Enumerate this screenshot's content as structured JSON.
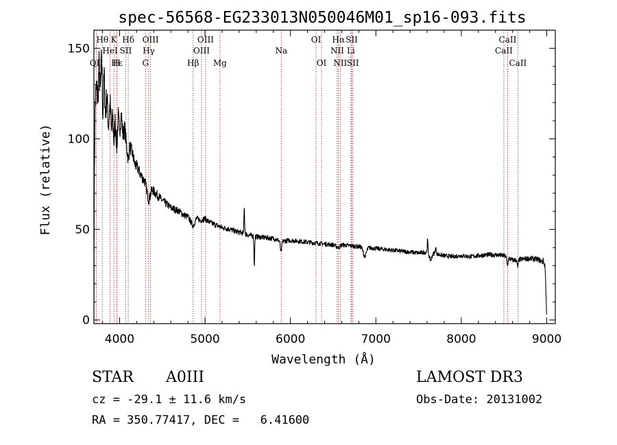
{
  "chart_data": {
    "type": "line",
    "title": "spec-56568-EG233013N050046M01_sp16-093.fits",
    "xlabel": "Wavelength (Å)",
    "ylabel": "Flux (relative)",
    "xlim": [
      3700,
      9100
    ],
    "ylim": [
      -2,
      160
    ],
    "xticks": [
      "4000",
      "5000",
      "6000",
      "7000",
      "8000",
      "9000"
    ],
    "xtick_values": [
      4000,
      5000,
      6000,
      7000,
      8000,
      9000
    ],
    "yticks": [
      "0",
      "50",
      "100",
      "150"
    ],
    "ytick_values": [
      0,
      50,
      100,
      150
    ],
    "grid": false,
    "line_color": "#000000",
    "marker_color": "#a83232",
    "lines": [
      {
        "label": "OII",
        "x": 3727,
        "row": 2
      },
      {
        "label": "Hθ",
        "x": 3798,
        "row": 0
      },
      {
        "label": "HeI",
        "x": 3889,
        "row": 1
      },
      {
        "label": "K",
        "x": 3934,
        "row": 0
      },
      {
        "label": "SII",
        "x": 4072,
        "row": 1
      },
      {
        "label": "Hε",
        "x": 3970,
        "row": 2
      },
      {
        "label": "H",
        "x": 3968,
        "row": 2
      },
      {
        "label": "Hδ",
        "x": 4102,
        "row": 0
      },
      {
        "label": "OIII",
        "x": 4363,
        "row": 0
      },
      {
        "label": "Hγ",
        "x": 4341,
        "row": 1
      },
      {
        "label": "G",
        "x": 4304,
        "row": 2
      },
      {
        "label": "Hβ",
        "x": 4861,
        "row": 2
      },
      {
        "label": "OIII",
        "x": 5007,
        "row": 0
      },
      {
        "label": "OIII",
        "x": 4959,
        "row": 1
      },
      {
        "label": "Mg",
        "x": 5175,
        "row": 2
      },
      {
        "label": "Na",
        "x": 5893,
        "row": 1
      },
      {
        "label": "OI",
        "x": 6300,
        "row": 0
      },
      {
        "label": "OI",
        "x": 6364,
        "row": 2
      },
      {
        "label": "Hα",
        "x": 6563,
        "row": 0
      },
      {
        "label": "SII",
        "x": 6717,
        "row": 0
      },
      {
        "label": "NII",
        "x": 6548,
        "row": 1
      },
      {
        "label": "Li",
        "x": 6708,
        "row": 1
      },
      {
        "label": "NII",
        "x": 6583,
        "row": 2
      },
      {
        "label": "SII",
        "x": 6731,
        "row": 2
      },
      {
        "label": "CaII",
        "x": 8542,
        "row": 0
      },
      {
        "label": "CaII",
        "x": 8498,
        "row": 1
      },
      {
        "label": "CaII",
        "x": 8662,
        "row": 2
      }
    ],
    "spectrum": {
      "anchors": [
        [
          3700,
          5
        ],
        [
          3705,
          85
        ],
        [
          3715,
          120
        ],
        [
          3730,
          128
        ],
        [
          3745,
          122
        ],
        [
          3760,
          140
        ],
        [
          3775,
          125
        ],
        [
          3790,
          145
        ],
        [
          3805,
          115
        ],
        [
          3820,
          135
        ],
        [
          3835,
          112
        ],
        [
          3850,
          125
        ],
        [
          3870,
          108
        ],
        [
          3890,
          120
        ],
        [
          3905,
          103
        ],
        [
          3920,
          112
        ],
        [
          3935,
          98
        ],
        [
          3950,
          110
        ],
        [
          3968,
          95
        ],
        [
          3985,
          112
        ],
        [
          4000,
          104
        ],
        [
          4020,
          114
        ],
        [
          4040,
          102
        ],
        [
          4060,
          106
        ],
        [
          4080,
          97
        ],
        [
          4102,
          88
        ],
        [
          4120,
          96
        ],
        [
          4150,
          92
        ],
        [
          4180,
          86
        ],
        [
          4210,
          84
        ],
        [
          4250,
          80
        ],
        [
          4300,
          76
        ],
        [
          4341,
          66
        ],
        [
          4380,
          72
        ],
        [
          4420,
          70
        ],
        [
          4460,
          68
        ],
        [
          4500,
          66
        ],
        [
          4550,
          64
        ],
        [
          4600,
          62
        ],
        [
          4650,
          61
        ],
        [
          4700,
          60
        ],
        [
          4750,
          58
        ],
        [
          4800,
          57
        ],
        [
          4861,
          52
        ],
        [
          4900,
          56
        ],
        [
          4950,
          55
        ],
        [
          5000,
          56
        ],
        [
          5050,
          54
        ],
        [
          5100,
          53
        ],
        [
          5150,
          52
        ],
        [
          5200,
          51
        ],
        [
          5250,
          50.5
        ],
        [
          5300,
          50
        ],
        [
          5350,
          49
        ],
        [
          5400,
          48.5
        ],
        [
          5450,
          48
        ],
        [
          5500,
          47
        ],
        [
          5600,
          46
        ],
        [
          5700,
          45.5
        ],
        [
          5800,
          45
        ],
        [
          5893,
          43.5
        ],
        [
          6000,
          44
        ],
        [
          6100,
          43.5
        ],
        [
          6200,
          43
        ],
        [
          6300,
          42.5
        ],
        [
          6400,
          42
        ],
        [
          6500,
          41.5
        ],
        [
          6563,
          40
        ],
        [
          6600,
          41.5
        ],
        [
          6700,
          41
        ],
        [
          6800,
          40.5
        ],
        [
          6900,
          40
        ],
        [
          7000,
          39.5
        ],
        [
          7100,
          39
        ],
        [
          7200,
          38.5
        ],
        [
          7300,
          38
        ],
        [
          7400,
          37.5
        ],
        [
          7500,
          37
        ],
        [
          7600,
          37.5
        ],
        [
          7700,
          36.5
        ],
        [
          7800,
          35.5
        ],
        [
          7900,
          35
        ],
        [
          8000,
          35.5
        ],
        [
          8100,
          35
        ],
        [
          8200,
          35.5
        ],
        [
          8300,
          36
        ],
        [
          8400,
          36
        ],
        [
          8500,
          35.5
        ],
        [
          8600,
          33
        ],
        [
          8700,
          33.5
        ],
        [
          8800,
          34
        ],
        [
          8900,
          33.5
        ],
        [
          8950,
          32
        ],
        [
          8980,
          30
        ],
        [
          9000,
          3
        ]
      ],
      "features": [
        [
          5460,
          14,
          6
        ],
        [
          5577,
          -16,
          6
        ],
        [
          5890,
          -6,
          12
        ],
        [
          6870,
          -5,
          25
        ],
        [
          7605,
          7,
          6
        ],
        [
          7640,
          -4,
          20
        ],
        [
          7700,
          3,
          10
        ],
        [
          8540,
          -4,
          10
        ],
        [
          8660,
          -4,
          10
        ],
        [
          8960,
          2,
          6
        ]
      ],
      "noise": [
        [
          3700,
          10
        ],
        [
          3800,
          10
        ],
        [
          3900,
          8
        ],
        [
          4000,
          6
        ],
        [
          4100,
          4
        ],
        [
          4300,
          3
        ],
        [
          4600,
          2
        ],
        [
          5000,
          1.6
        ],
        [
          6000,
          1.3
        ],
        [
          7000,
          1.2
        ],
        [
          8000,
          1.2
        ],
        [
          9000,
          1.5
        ]
      ],
      "step": 3,
      "seed": 7
    }
  },
  "footer": {
    "object_class": "STAR",
    "subclass": "A0III",
    "survey": "LAMOST DR3",
    "velocity": "cz = -29.1 ± 11.6 km/s",
    "obs_date": "Obs-Date: 20131002",
    "coords": "RA = 350.77417, DEC =   6.41600"
  }
}
